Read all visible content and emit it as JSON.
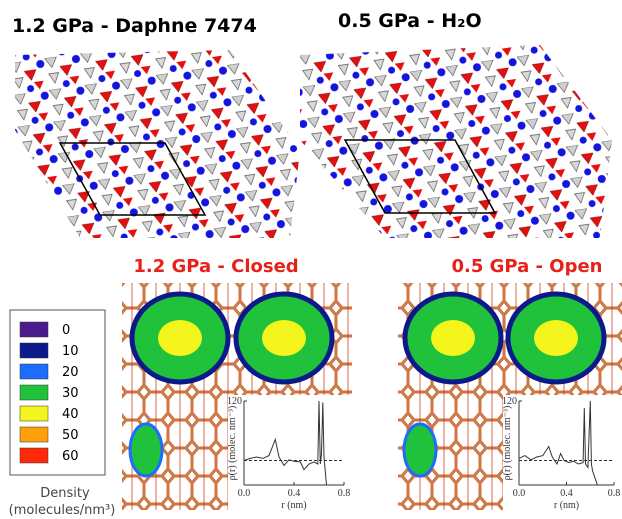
{
  "panels": [
    {
      "title": "1.2 GPa - Daphne 7474"
    },
    {
      "title": "0.5 GPa - H₂O"
    }
  ],
  "maps": [
    {
      "title": "1.2 GPa - Closed",
      "inset": {
        "type": "line",
        "x": [
          0,
          0.05,
          0.1,
          0.15,
          0.2,
          0.25,
          0.28,
          0.32,
          0.36,
          0.4,
          0.45,
          0.48,
          0.52,
          0.56,
          0.59,
          0.6,
          0.61,
          0.62,
          0.63,
          0.64,
          0.66,
          0.7,
          0.8
        ],
        "values": [
          35,
          38,
          40,
          38,
          42,
          65,
          40,
          28,
          36,
          34,
          33,
          22,
          30,
          33,
          30,
          120,
          30,
          45,
          118,
          40,
          0,
          0,
          0
        ],
        "color": "#333333",
        "reference": 35,
        "xlim": [
          0,
          0.8
        ],
        "ylim": [
          0,
          120
        ],
        "xticks": [
          {
            "value": 0,
            "label": "0.0"
          },
          0.4,
          0.8
        ],
        "yticks": [
          120
        ],
        "xlabel": "r (nm)",
        "ylabel": "ρ(r) (molec. nm⁻³)"
      }
    },
    {
      "title": "0.5 GPa - Open",
      "inset": {
        "type": "line",
        "x": [
          0,
          0.05,
          0.1,
          0.15,
          0.2,
          0.25,
          0.28,
          0.32,
          0.35,
          0.38,
          0.42,
          0.46,
          0.5,
          0.54,
          0.55,
          0.56,
          0.58,
          0.6,
          0.61,
          0.62,
          0.66,
          0.7,
          0.8
        ],
        "values": [
          38,
          42,
          36,
          40,
          42,
          55,
          40,
          30,
          45,
          35,
          32,
          34,
          30,
          32,
          110,
          30,
          25,
          120,
          30,
          20,
          0,
          0,
          0
        ],
        "color": "#333333",
        "reference": 35,
        "xlim": [
          0,
          0.8
        ],
        "ylim": [
          0,
          120
        ],
        "xticks": [
          {
            "value": 0,
            "label": "0.0"
          },
          0.4,
          0.8
        ],
        "yticks": [
          120
        ],
        "xlabel": "r (nm)",
        "ylabel": "ρ(r) (molec. nm⁻³)"
      }
    }
  ],
  "legend": {
    "items": [
      {
        "value": 0,
        "color": "#4b1a8c"
      },
      {
        "value": 10,
        "color": "#0a1a8a"
      },
      {
        "value": 20,
        "color": "#1e6bff"
      },
      {
        "value": 30,
        "color": "#1fc23a"
      },
      {
        "value": 40,
        "color": "#f5f51e"
      },
      {
        "value": 50,
        "color": "#ffa00a"
      },
      {
        "value": 60,
        "color": "#ff2a0a"
      }
    ],
    "title": "Density",
    "unit": "(molecules/nm³)"
  }
}
